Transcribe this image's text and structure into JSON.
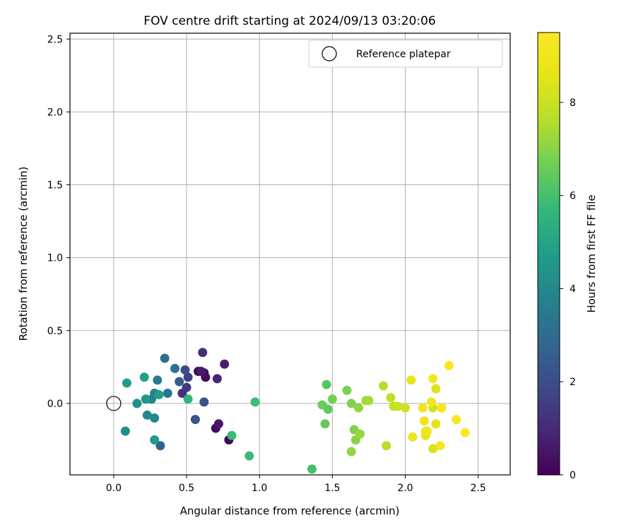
{
  "chart_data": {
    "type": "scatter",
    "title": "FOV centre drift starting at 2024/09/13 03:20:06",
    "xlabel": "Angular distance from reference (arcmin)",
    "ylabel": "Rotation from reference (arcmin)",
    "xlim": [
      -0.3,
      2.72
    ],
    "ylim": [
      -0.49,
      2.54
    ],
    "xticks": [
      0.0,
      0.5,
      1.0,
      1.5,
      2.0,
      2.5
    ],
    "xtick_labels": [
      "0.0",
      "0.5",
      "1.0",
      "1.5",
      "2.0",
      "2.5"
    ],
    "yticks": [
      0.0,
      0.5,
      1.0,
      1.5,
      2.0,
      2.5
    ],
    "ytick_labels": [
      "0.0",
      "0.5",
      "1.0",
      "1.5",
      "2.0",
      "2.5"
    ],
    "grid": true,
    "legend": {
      "position": "top-right",
      "entries": [
        {
          "label": "Reference platepar",
          "marker": "open-circle",
          "color": "#000000",
          "x": 0.0,
          "y": 0.0
        }
      ]
    },
    "colorbar": {
      "label": "Hours from first FF file",
      "colormap": "viridis",
      "min": 0,
      "max": 9.5,
      "ticks": [
        0,
        2,
        4,
        6,
        8
      ],
      "tick_labels": [
        "0",
        "2",
        "4",
        "6",
        "8"
      ]
    },
    "points": [
      {
        "x": 0.58,
        "y": 0.22,
        "t": 0.1
      },
      {
        "x": 0.62,
        "y": 0.21,
        "t": 0.2
      },
      {
        "x": 0.63,
        "y": 0.18,
        "t": 0.3
      },
      {
        "x": 0.7,
        "y": -0.17,
        "t": 0.2
      },
      {
        "x": 0.79,
        "y": -0.25,
        "t": 0.1
      },
      {
        "x": 0.72,
        "y": -0.14,
        "t": 0.5
      },
      {
        "x": 0.6,
        "y": 0.22,
        "t": 0.6
      },
      {
        "x": 0.76,
        "y": 0.27,
        "t": 0.7
      },
      {
        "x": 0.71,
        "y": 0.17,
        "t": 0.9
      },
      {
        "x": 0.61,
        "y": 0.35,
        "t": 1.1
      },
      {
        "x": 0.47,
        "y": 0.07,
        "t": 1.2
      },
      {
        "x": 0.5,
        "y": 0.11,
        "t": 1.4
      },
      {
        "x": 0.51,
        "y": 0.18,
        "t": 1.6
      },
      {
        "x": 0.49,
        "y": 0.23,
        "t": 1.9
      },
      {
        "x": 0.56,
        "y": -0.11,
        "t": 2.2
      },
      {
        "x": 0.62,
        "y": 0.01,
        "t": 2.2
      },
      {
        "x": 0.45,
        "y": 0.15,
        "t": 2.5
      },
      {
        "x": 0.32,
        "y": -0.29,
        "t": 2.7
      },
      {
        "x": 0.35,
        "y": 0.31,
        "t": 3.1
      },
      {
        "x": 0.42,
        "y": 0.24,
        "t": 3.2
      },
      {
        "x": 0.37,
        "y": 0.07,
        "t": 3.3
      },
      {
        "x": 0.3,
        "y": 0.16,
        "t": 3.5
      },
      {
        "x": 0.28,
        "y": 0.07,
        "t": 3.7
      },
      {
        "x": 0.26,
        "y": 0.03,
        "t": 3.8
      },
      {
        "x": 0.23,
        "y": -0.08,
        "t": 3.9
      },
      {
        "x": 0.28,
        "y": -0.1,
        "t": 4.0
      },
      {
        "x": 0.08,
        "y": -0.19,
        "t": 4.2
      },
      {
        "x": 0.16,
        "y": 0.0,
        "t": 4.3
      },
      {
        "x": 0.22,
        "y": 0.03,
        "t": 4.5
      },
      {
        "x": 0.28,
        "y": -0.25,
        "t": 4.6
      },
      {
        "x": 0.09,
        "y": 0.14,
        "t": 4.7
      },
      {
        "x": 0.21,
        "y": 0.18,
        "t": 4.8
      },
      {
        "x": 0.31,
        "y": 0.06,
        "t": 4.8
      },
      {
        "x": 0.51,
        "y": 0.03,
        "t": 5.6
      },
      {
        "x": 0.81,
        "y": -0.22,
        "t": 5.8
      },
      {
        "x": 0.93,
        "y": -0.36,
        "t": 5.8
      },
      {
        "x": 0.97,
        "y": 0.01,
        "t": 5.9
      },
      {
        "x": 1.36,
        "y": -0.45,
        "t": 6.0
      },
      {
        "x": 1.46,
        "y": 0.13,
        "t": 6.3
      },
      {
        "x": 1.47,
        "y": -0.04,
        "t": 6.4
      },
      {
        "x": 1.45,
        "y": -0.14,
        "t": 6.5
      },
      {
        "x": 1.43,
        "y": -0.01,
        "t": 6.6
      },
      {
        "x": 1.5,
        "y": 0.03,
        "t": 6.7
      },
      {
        "x": 1.6,
        "y": 0.09,
        "t": 6.8
      },
      {
        "x": 1.63,
        "y": 0.0,
        "t": 6.9
      },
      {
        "x": 1.65,
        "y": -0.18,
        "t": 6.9
      },
      {
        "x": 1.66,
        "y": -0.25,
        "t": 7.0
      },
      {
        "x": 1.63,
        "y": -0.33,
        "t": 7.1
      },
      {
        "x": 1.68,
        "y": -0.03,
        "t": 7.1
      },
      {
        "x": 1.69,
        "y": -0.21,
        "t": 7.2
      },
      {
        "x": 1.73,
        "y": 0.02,
        "t": 7.3
      },
      {
        "x": 1.75,
        "y": 0.02,
        "t": 7.4
      },
      {
        "x": 1.85,
        "y": 0.12,
        "t": 7.6
      },
      {
        "x": 1.87,
        "y": -0.29,
        "t": 7.7
      },
      {
        "x": 1.9,
        "y": 0.04,
        "t": 7.8
      },
      {
        "x": 1.92,
        "y": -0.02,
        "t": 7.9
      },
      {
        "x": 1.95,
        "y": -0.02,
        "t": 8.0
      },
      {
        "x": 2.0,
        "y": -0.03,
        "t": 8.1
      },
      {
        "x": 2.19,
        "y": -0.03,
        "t": 8.2
      },
      {
        "x": 2.19,
        "y": -0.31,
        "t": 8.3
      },
      {
        "x": 2.21,
        "y": 0.1,
        "t": 8.4
      },
      {
        "x": 2.21,
        "y": -0.14,
        "t": 8.5
      },
      {
        "x": 2.14,
        "y": -0.22,
        "t": 8.6
      },
      {
        "x": 2.04,
        "y": 0.16,
        "t": 8.7
      },
      {
        "x": 2.14,
        "y": -0.19,
        "t": 8.8
      },
      {
        "x": 2.05,
        "y": -0.23,
        "t": 8.8
      },
      {
        "x": 2.13,
        "y": -0.12,
        "t": 8.9
      },
      {
        "x": 2.15,
        "y": -0.19,
        "t": 9.0
      },
      {
        "x": 2.12,
        "y": -0.03,
        "t": 9.0
      },
      {
        "x": 2.18,
        "y": 0.01,
        "t": 9.1
      },
      {
        "x": 2.19,
        "y": 0.17,
        "t": 9.1
      },
      {
        "x": 2.24,
        "y": -0.29,
        "t": 9.2
      },
      {
        "x": 2.25,
        "y": -0.03,
        "t": 9.2
      },
      {
        "x": 2.3,
        "y": 0.26,
        "t": 9.3
      },
      {
        "x": 2.35,
        "y": -0.11,
        "t": 9.3
      },
      {
        "x": 2.41,
        "y": -0.2,
        "t": 9.4
      }
    ]
  }
}
